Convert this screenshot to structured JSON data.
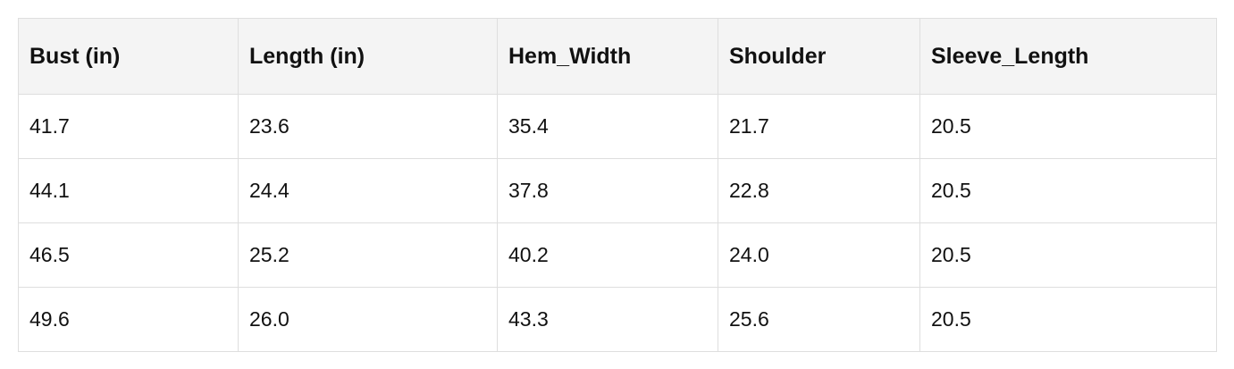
{
  "table": {
    "header": [
      "Bust (in)",
      "Length (in)",
      "Hem_Width",
      "Shoulder",
      "Sleeve_Length"
    ],
    "rows": [
      [
        "41.7",
        "23.6",
        "35.4",
        "21.7",
        "20.5"
      ],
      [
        "44.1",
        "24.4",
        "37.8",
        "22.8",
        "20.5"
      ],
      [
        "46.5",
        "25.2",
        "40.2",
        "24.0",
        "20.5"
      ],
      [
        "49.6",
        "26.0",
        "43.3",
        "25.6",
        "20.5"
      ]
    ]
  }
}
